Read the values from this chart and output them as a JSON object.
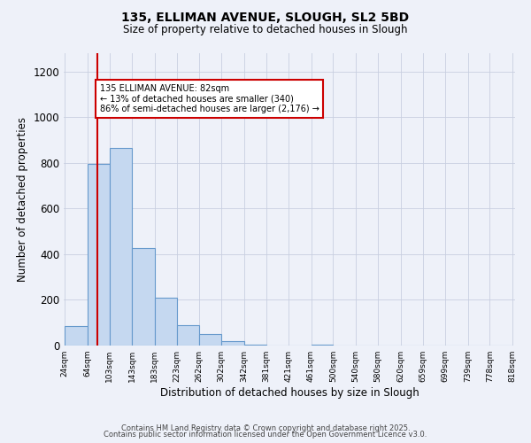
{
  "title": "135, ELLIMAN AVENUE, SLOUGH, SL2 5BD",
  "subtitle": "Size of property relative to detached houses in Slough",
  "xlabel": "Distribution of detached houses by size in Slough",
  "ylabel": "Number of detached properties",
  "bar_color": "#c5d8f0",
  "bar_edgecolor": "#6699cc",
  "background_color": "#eef1f9",
  "grid_color": "#c8cfe0",
  "vline_color": "#cc0000",
  "vline_x": 82,
  "annotation_text": "135 ELLIMAN AVENUE: 82sqm\n← 13% of detached houses are smaller (340)\n86% of semi-detached houses are larger (2,176) →",
  "annotation_box_edgecolor": "#cc0000",
  "bins": [
    24,
    64,
    103,
    143,
    183,
    223,
    262,
    302,
    342,
    381,
    421,
    461,
    500,
    540,
    580,
    620,
    659,
    699,
    739,
    778,
    818
  ],
  "bin_labels": [
    "24sqm",
    "64sqm",
    "103sqm",
    "143sqm",
    "183sqm",
    "223sqm",
    "262sqm",
    "302sqm",
    "342sqm",
    "381sqm",
    "421sqm",
    "461sqm",
    "500sqm",
    "540sqm",
    "580sqm",
    "620sqm",
    "659sqm",
    "699sqm",
    "739sqm",
    "778sqm",
    "818sqm"
  ],
  "counts": [
    85,
    795,
    865,
    425,
    210,
    90,
    52,
    20,
    5,
    0,
    0,
    2,
    0,
    0,
    0,
    0,
    0,
    0,
    0,
    0
  ],
  "ylim": [
    0,
    1280
  ],
  "xlim": [
    24,
    818
  ],
  "yticks": [
    0,
    200,
    400,
    600,
    800,
    1000,
    1200
  ],
  "footer_line1": "Contains HM Land Registry data © Crown copyright and database right 2025.",
  "footer_line2": "Contains public sector information licensed under the Open Government Licence v3.0."
}
